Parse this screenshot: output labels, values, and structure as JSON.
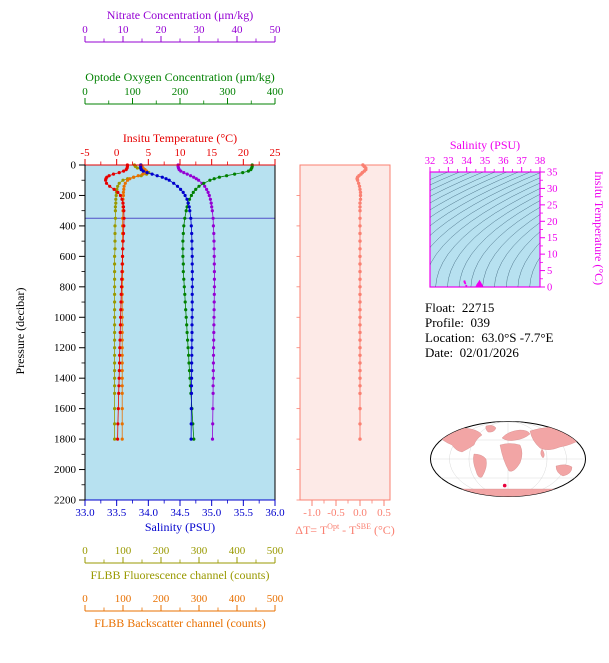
{
  "colors": {
    "nitrate": "#9400d3",
    "oxygen": "#008000",
    "temperature": "#e60000",
    "salinity": "#0000cd",
    "pressure": "#000000",
    "fluorescence": "#999900",
    "backscatter": "#e87000",
    "delta_t": "#fa8072",
    "ts_axis": "#ee00ee",
    "plot_bg": "#b7e1f0",
    "delta_bg": "#fdeae7",
    "marker_line": "#5050c8",
    "isopycnal": "#3a6078",
    "map_land": "#f2a5a5",
    "map_marker": "#e8003c",
    "info_text": "#000000"
  },
  "axes": {
    "nitrate": {
      "title": "Nitrate Concentration (μm/kg)",
      "min": 0,
      "max": 50,
      "ticks": [
        "0",
        "10",
        "20",
        "30",
        "40",
        "50"
      ]
    },
    "oxygen": {
      "title": "Optode Oxygen Concentration (μm/kg)",
      "min": 0,
      "max": 400,
      "ticks": [
        "0",
        "100",
        "200",
        "300",
        "400"
      ]
    },
    "temperature": {
      "title": "Insitu Temperature (°C)",
      "min": -5,
      "max": 25,
      "ticks": [
        "-5",
        "0",
        "5",
        "10",
        "15",
        "20",
        "25"
      ]
    },
    "salinity": {
      "title": "Salinity (PSU)",
      "min": 33,
      "max": 36,
      "ticks": [
        "33.0",
        "33.5",
        "34.0",
        "34.5",
        "35.0",
        "35.5",
        "36.0"
      ]
    },
    "pressure": {
      "title": "Pressure (decibar)",
      "min": 0,
      "max": 2200,
      "ticks": [
        "0",
        "200",
        "400",
        "600",
        "800",
        "1000",
        "1200",
        "1400",
        "1600",
        "1800",
        "2000",
        "2200"
      ]
    },
    "delta_t": {
      "title_parts": {
        "t1": "ΔT= T",
        "sup1": "Opt",
        "t2": " - T",
        "sup2": "SBE",
        "t3": " (°C)"
      },
      "min": -1.25,
      "max": 0.625,
      "ticks": [
        "-1.0",
        "-0.5",
        "0.0",
        "0.5"
      ]
    },
    "fluorescence": {
      "title": "FLBB Fluorescence channel (counts)",
      "min": 0,
      "max": 500,
      "ticks": [
        "0",
        "100",
        "200",
        "300",
        "400",
        "500"
      ]
    },
    "backscatter": {
      "title": "FLBB Backscatter channel (counts)",
      "min": 0,
      "max": 500,
      "ticks": [
        "0",
        "100",
        "200",
        "300",
        "400",
        "500"
      ]
    },
    "ts_salinity": {
      "title": "Salinity (PSU)",
      "min": 32,
      "max": 38,
      "ticks": [
        "32",
        "33",
        "34",
        "35",
        "36",
        "37",
        "38"
      ]
    },
    "ts_temperature": {
      "title": "Insitu Temperature (°C)",
      "min": 0,
      "max": 35,
      "ticks": [
        "0",
        "5",
        "10",
        "15",
        "20",
        "25",
        "30",
        "35"
      ]
    }
  },
  "float_info": {
    "float_label": "Float:  22715",
    "profile_label": "Profile:  039",
    "location_label": "Location:  63.0°S -7.7°E",
    "date_label": "Date:  02/01/2026"
  },
  "world_map": {
    "marker": {
      "lon": -7.7,
      "lat": -63
    }
  },
  "chart_data": {
    "type": "line",
    "description": "Argo/SOCCOM float profile plot: sensor profiles vs pressure, Optode-SBE temperature difference vs pressure, and a T-S diagram with isopycnals.",
    "panels": [
      {
        "name": "profile-panel",
        "x_axes": [
          "nitrate",
          "oxygen",
          "temperature",
          "salinity",
          "fluorescence",
          "backscatter"
        ],
        "y_axis": "pressure"
      },
      {
        "name": "delta-t-panel",
        "x_axis": "delta_t",
        "y_axis": "pressure"
      },
      {
        "name": "ts-panel",
        "x_axis": "ts_salinity",
        "y_axis": "ts_temperature"
      }
    ],
    "marker_line_pressure": 350,
    "profiles": {
      "pressure": [
        0,
        10,
        20,
        30,
        40,
        50,
        60,
        70,
        80,
        90,
        100,
        120,
        140,
        160,
        180,
        200,
        225,
        250,
        275,
        300,
        350,
        400,
        450,
        500,
        550,
        600,
        650,
        700,
        750,
        800,
        850,
        900,
        950,
        1000,
        1050,
        1100,
        1150,
        1200,
        1250,
        1300,
        1350,
        1400,
        1450,
        1500,
        1600,
        1700,
        1800
      ],
      "temperature": [
        1.7,
        1.7,
        1.65,
        1.5,
        1.1,
        0.4,
        -0.5,
        -1.2,
        -1.55,
        -1.7,
        -1.75,
        -1.6,
        -1.1,
        -0.4,
        0.2,
        0.6,
        0.85,
        1.0,
        1.08,
        1.12,
        1.15,
        1.12,
        1.08,
        1.02,
        0.97,
        0.92,
        0.88,
        0.84,
        0.8,
        0.76,
        0.72,
        0.68,
        0.65,
        0.62,
        0.59,
        0.56,
        0.53,
        0.5,
        0.47,
        0.44,
        0.41,
        0.38,
        0.35,
        0.32,
        0.26,
        0.2,
        0.15
      ],
      "salinity": [
        33.88,
        33.88,
        33.88,
        33.89,
        33.92,
        33.98,
        34.06,
        34.14,
        34.22,
        34.28,
        34.33,
        34.4,
        34.46,
        34.51,
        34.55,
        34.58,
        34.61,
        34.63,
        34.645,
        34.655,
        34.67,
        34.678,
        34.684,
        34.688,
        34.69,
        34.692,
        34.693,
        34.694,
        34.694,
        34.694,
        34.693,
        34.693,
        34.692,
        34.691,
        34.69,
        34.689,
        34.688,
        34.687,
        34.686,
        34.685,
        34.684,
        34.683,
        34.682,
        34.681,
        34.679,
        34.677,
        34.675
      ],
      "oxygen": [
        352,
        352,
        351,
        349,
        344,
        332,
        315,
        298,
        283,
        272,
        263,
        250,
        240,
        233,
        228,
        224,
        220,
        217,
        215,
        213,
        210,
        208,
        207,
        206,
        206,
        206,
        207,
        207,
        208,
        209,
        210,
        211,
        212,
        213,
        214,
        215,
        216,
        217,
        218,
        219,
        220,
        221,
        222,
        223,
        225,
        227,
        229
      ],
      "nitrate": [
        24.5,
        24.5,
        24.6,
        24.8,
        25.2,
        26.0,
        26.9,
        27.8,
        28.6,
        29.3,
        29.9,
        30.8,
        31.5,
        32.0,
        32.4,
        32.7,
        33.0,
        33.2,
        33.35,
        33.5,
        33.7,
        33.8,
        33.9,
        33.95,
        33.98,
        34.0,
        34.02,
        34.05,
        34.05,
        34.05,
        34.03,
        34.0,
        33.98,
        33.95,
        33.92,
        33.9,
        33.87,
        33.85,
        33.82,
        33.8,
        33.77,
        33.75,
        33.72,
        33.7,
        33.65,
        33.6,
        33.55
      ],
      "fluorescence": [
        130,
        133,
        138,
        148,
        160,
        168,
        162,
        148,
        128,
        112,
        100,
        90,
        86,
        84,
        83,
        82,
        81,
        81,
        80,
        80,
        80,
        79,
        79,
        79,
        79,
        78,
        78,
        78,
        78,
        78,
        78,
        78,
        78,
        78,
        78,
        78,
        78,
        78,
        78,
        78,
        78,
        78,
        78,
        78,
        78,
        78,
        78
      ],
      "backscatter": [
        148,
        150,
        153,
        158,
        162,
        160,
        152,
        140,
        128,
        118,
        112,
        106,
        103,
        102,
        101,
        101,
        100,
        100,
        100,
        100,
        99,
        99,
        99,
        99,
        99,
        99,
        99,
        99,
        99,
        98,
        98,
        98,
        98,
        98,
        98,
        98,
        98,
        98,
        98,
        98,
        98,
        98,
        98,
        98,
        98,
        98,
        98
      ],
      "delta_t": [
        0.06,
        0.09,
        0.12,
        0.12,
        0.09,
        0.05,
        0.02,
        -0.02,
        -0.05,
        -0.06,
        -0.05,
        -0.03,
        -0.01,
        0.0,
        0.01,
        0.01,
        0.01,
        0.0,
        0.0,
        0.0,
        0.0,
        0.0,
        0.0,
        0.0,
        0.0,
        0.0,
        0.0,
        0.0,
        0.0,
        0.0,
        0.0,
        0.0,
        0.0,
        0.0,
        0.0,
        0.0,
        0.0,
        0.0,
        0.0,
        0.0,
        0.0,
        0.0,
        0.0,
        0.0,
        0.0,
        0.0,
        0.0
      ]
    },
    "ts_diagram": {
      "marker": {
        "salinity": 34.7,
        "temperature": 1.0
      },
      "isopycnal_sigma_levels": [
        20.5,
        21,
        21.5,
        22,
        22.5,
        23,
        23.5,
        24,
        24.5,
        25,
        25.5,
        26,
        26.5,
        27,
        27.5,
        28,
        28.5,
        29,
        29.5,
        30
      ]
    }
  }
}
